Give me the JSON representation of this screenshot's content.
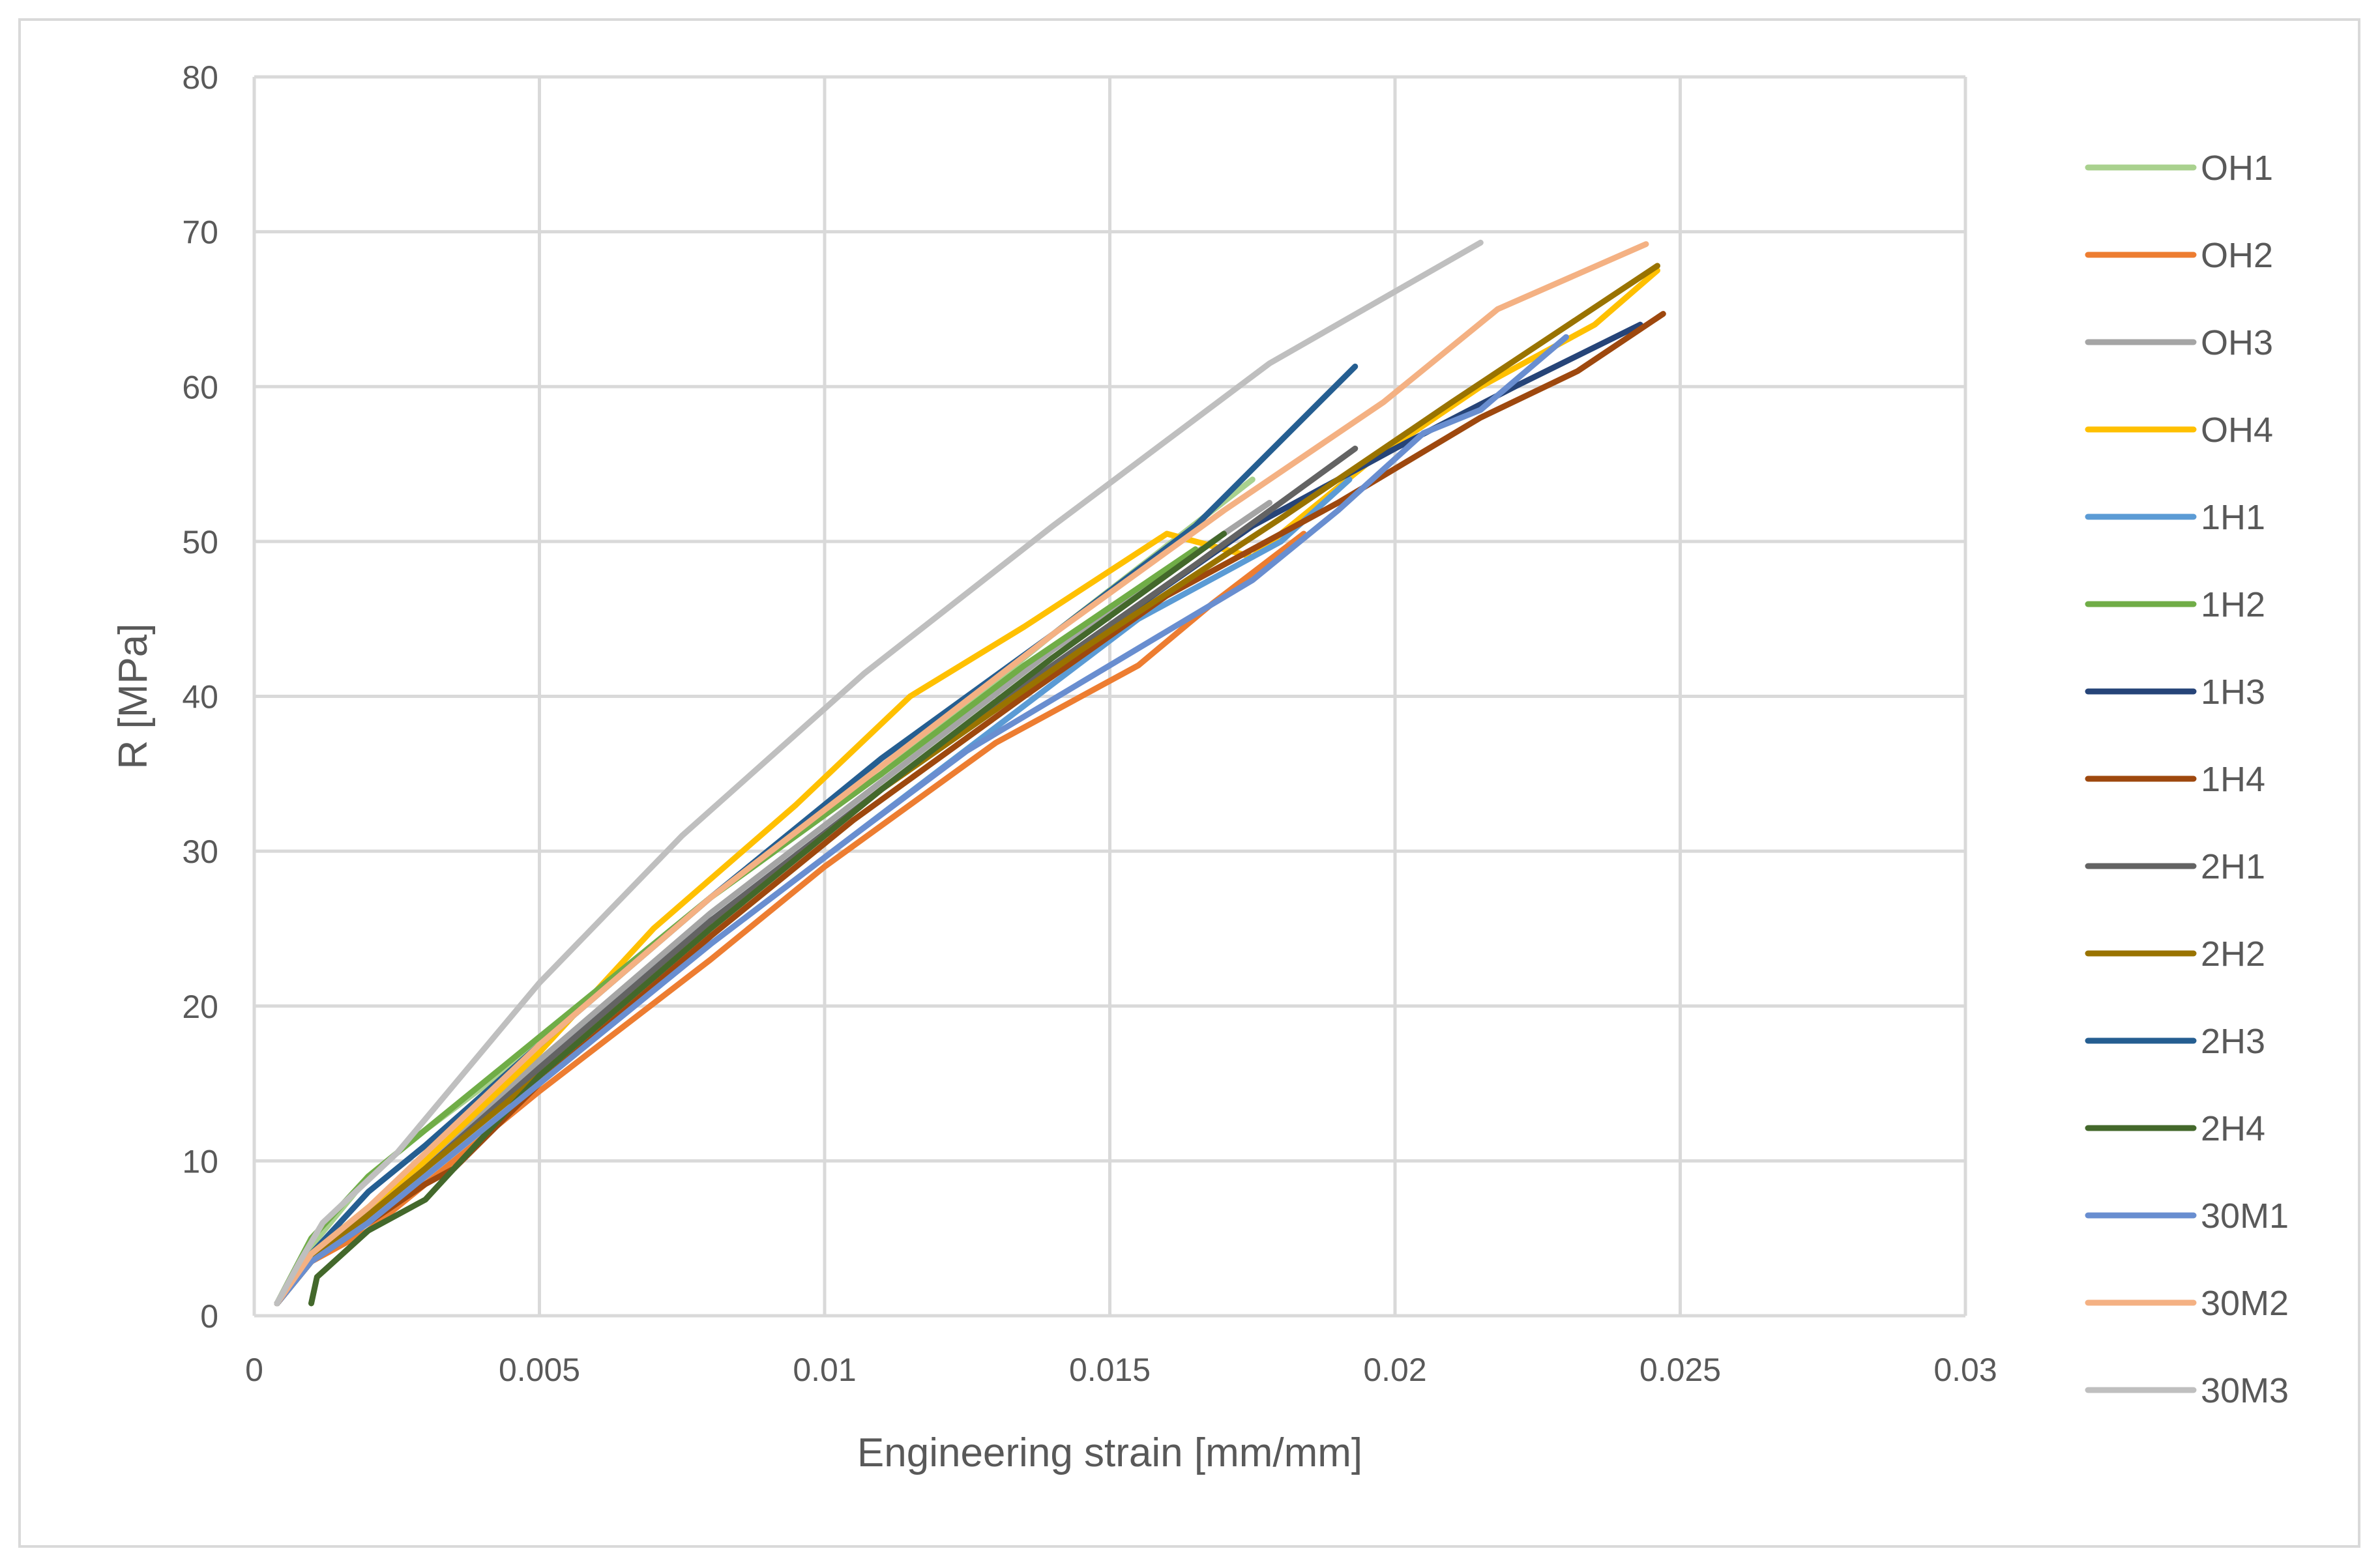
{
  "chart_data": {
    "type": "line",
    "title": "",
    "xlabel": "Engineering strain [mm/mm]",
    "ylabel": "R [MPa]",
    "xlim": [
      0,
      0.03
    ],
    "ylim": [
      0,
      80
    ],
    "x_ticks": [
      "0",
      "0.005",
      "0.01",
      "0.015",
      "0.02",
      "0.025",
      "0.03"
    ],
    "y_ticks": [
      "0",
      "10",
      "20",
      "30",
      "40",
      "50",
      "60",
      "70",
      "80"
    ],
    "grid": true,
    "legend_position": "right",
    "series": [
      {
        "name": "OH1",
        "color": "#a9d18e",
        "points": [
          [
            0.0004,
            0.8
          ],
          [
            0.001,
            4.5
          ],
          [
            0.002,
            9
          ],
          [
            0.003,
            12
          ],
          [
            0.005,
            17.5
          ],
          [
            0.008,
            27
          ],
          [
            0.011,
            35
          ],
          [
            0.014,
            44
          ],
          [
            0.0175,
            54
          ]
        ]
      },
      {
        "name": "OH2",
        "color": "#ed7d31",
        "points": [
          [
            0.0004,
            0.8
          ],
          [
            0.001,
            3.5
          ],
          [
            0.002,
            5.5
          ],
          [
            0.003,
            8.5
          ],
          [
            0.005,
            14.5
          ],
          [
            0.008,
            23
          ],
          [
            0.01,
            29
          ],
          [
            0.013,
            37
          ],
          [
            0.0155,
            42
          ],
          [
            0.0168,
            46
          ],
          [
            0.0184,
            50.5
          ]
        ]
      },
      {
        "name": "OH3",
        "color": "#a5a5a5",
        "points": [
          [
            0.0004,
            0.8
          ],
          [
            0.001,
            4
          ],
          [
            0.002,
            7
          ],
          [
            0.003,
            10
          ],
          [
            0.005,
            16.5
          ],
          [
            0.008,
            26
          ],
          [
            0.011,
            34.5
          ],
          [
            0.014,
            43
          ],
          [
            0.016,
            48
          ],
          [
            0.0178,
            52.5
          ]
        ]
      },
      {
        "name": "OH4",
        "color": "#ffc000",
        "points": [
          [
            0.0004,
            0.8
          ],
          [
            0.001,
            4
          ],
          [
            0.002,
            7
          ],
          [
            0.003,
            10
          ],
          [
            0.005,
            17
          ],
          [
            0.007,
            25
          ],
          [
            0.0095,
            33
          ],
          [
            0.0115,
            40
          ],
          [
            0.0135,
            44.5
          ],
          [
            0.016,
            50.5
          ],
          [
            0.0175,
            49
          ],
          [
            0.0195,
            55
          ],
          [
            0.0215,
            60
          ],
          [
            0.0235,
            64
          ],
          [
            0.0246,
            67.5
          ]
        ]
      },
      {
        "name": "1H1",
        "color": "#5b9bd5",
        "points": [
          [
            0.0004,
            0.8
          ],
          [
            0.001,
            3.5
          ],
          [
            0.002,
            6
          ],
          [
            0.003,
            9
          ],
          [
            0.005,
            15
          ],
          [
            0.008,
            24
          ],
          [
            0.0105,
            31
          ],
          [
            0.013,
            38
          ],
          [
            0.0155,
            45
          ],
          [
            0.018,
            50
          ],
          [
            0.0192,
            54
          ]
        ]
      },
      {
        "name": "1H2",
        "color": "#70ad47",
        "points": [
          [
            0.0004,
            0.8
          ],
          [
            0.001,
            5
          ],
          [
            0.002,
            9
          ],
          [
            0.003,
            12
          ],
          [
            0.005,
            18
          ],
          [
            0.008,
            27
          ],
          [
            0.011,
            35
          ],
          [
            0.0135,
            42
          ],
          [
            0.0165,
            49.5
          ]
        ]
      },
      {
        "name": "1H3",
        "color": "#264478",
        "points": [
          [
            0.0004,
            0.8
          ],
          [
            0.001,
            3.5
          ],
          [
            0.002,
            6.5
          ],
          [
            0.003,
            9.5
          ],
          [
            0.005,
            16
          ],
          [
            0.008,
            25.5
          ],
          [
            0.011,
            34
          ],
          [
            0.014,
            42
          ],
          [
            0.0175,
            51
          ],
          [
            0.02,
            56
          ],
          [
            0.0221,
            60
          ],
          [
            0.0243,
            64
          ]
        ]
      },
      {
        "name": "1H4",
        "color": "#9e480e",
        "points": [
          [
            0.0004,
            0.8
          ],
          [
            0.001,
            3.5
          ],
          [
            0.002,
            6
          ],
          [
            0.003,
            8.5
          ],
          [
            0.0035,
            9.5
          ],
          [
            0.005,
            15
          ],
          [
            0.008,
            24.5
          ],
          [
            0.0105,
            32
          ],
          [
            0.0135,
            40
          ],
          [
            0.016,
            46.5
          ],
          [
            0.019,
            52.5
          ],
          [
            0.0215,
            58
          ],
          [
            0.0232,
            61
          ],
          [
            0.0247,
            64.7
          ]
        ]
      },
      {
        "name": "2H1",
        "color": "#636363",
        "points": [
          [
            0.0004,
            0.8
          ],
          [
            0.001,
            3.5
          ],
          [
            0.002,
            6.5
          ],
          [
            0.003,
            9.5
          ],
          [
            0.005,
            16
          ],
          [
            0.008,
            25.5
          ],
          [
            0.011,
            34
          ],
          [
            0.014,
            42
          ],
          [
            0.0165,
            48.5
          ],
          [
            0.0193,
            56
          ]
        ]
      },
      {
        "name": "2H2",
        "color": "#997300",
        "points": [
          [
            0.0004,
            0.8
          ],
          [
            0.001,
            3.5
          ],
          [
            0.002,
            6.5
          ],
          [
            0.003,
            9.5
          ],
          [
            0.005,
            15.5
          ],
          [
            0.008,
            25
          ],
          [
            0.011,
            34
          ],
          [
            0.0145,
            43
          ],
          [
            0.018,
            51.5
          ],
          [
            0.021,
            59
          ],
          [
            0.0246,
            67.8
          ]
        ]
      },
      {
        "name": "2H3",
        "color": "#255e91",
        "points": [
          [
            0.0004,
            0.8
          ],
          [
            0.001,
            4
          ],
          [
            0.002,
            8
          ],
          [
            0.003,
            11
          ],
          [
            0.005,
            17.5
          ],
          [
            0.008,
            27
          ],
          [
            0.011,
            36
          ],
          [
            0.014,
            44
          ],
          [
            0.0165,
            51
          ],
          [
            0.0193,
            61.3
          ]
        ]
      },
      {
        "name": "2H4",
        "color": "#43682b",
        "points": [
          [
            0.001,
            0.8
          ],
          [
            0.0011,
            2.5
          ],
          [
            0.002,
            5.5
          ],
          [
            0.003,
            7.5
          ],
          [
            0.005,
            15.5
          ],
          [
            0.008,
            25
          ],
          [
            0.011,
            34
          ],
          [
            0.014,
            42.5
          ],
          [
            0.017,
            50.5
          ]
        ]
      },
      {
        "name": "30M1",
        "color": "#698ed0",
        "points": [
          [
            0.0004,
            0.8
          ],
          [
            0.001,
            3.5
          ],
          [
            0.002,
            6
          ],
          [
            0.003,
            9
          ],
          [
            0.005,
            15
          ],
          [
            0.008,
            24
          ],
          [
            0.0105,
            31
          ],
          [
            0.0125,
            36.5
          ],
          [
            0.015,
            42
          ],
          [
            0.0175,
            47.5
          ],
          [
            0.019,
            52
          ],
          [
            0.0205,
            57
          ],
          [
            0.0215,
            58.5
          ],
          [
            0.023,
            63.2
          ]
        ]
      },
      {
        "name": "30M2",
        "color": "#f4b183",
        "points": [
          [
            0.0004,
            0.8
          ],
          [
            0.001,
            4
          ],
          [
            0.002,
            7
          ],
          [
            0.003,
            10.5
          ],
          [
            0.005,
            17.5
          ],
          [
            0.008,
            27
          ],
          [
            0.011,
            35.5
          ],
          [
            0.014,
            44
          ],
          [
            0.017,
            52
          ],
          [
            0.0198,
            59
          ],
          [
            0.0218,
            65
          ],
          [
            0.0244,
            69.2
          ]
        ]
      },
      {
        "name": "30M3",
        "color": "#bfbfbf",
        "points": [
          [
            0.0004,
            0.8
          ],
          [
            0.0008,
            3.5
          ],
          [
            0.0012,
            6
          ],
          [
            0.0025,
            10.5
          ],
          [
            0.005,
            21.5
          ],
          [
            0.0075,
            31
          ],
          [
            0.0107,
            41.5
          ],
          [
            0.014,
            51
          ],
          [
            0.0178,
            61.5
          ],
          [
            0.0215,
            69.3
          ]
        ]
      }
    ]
  }
}
